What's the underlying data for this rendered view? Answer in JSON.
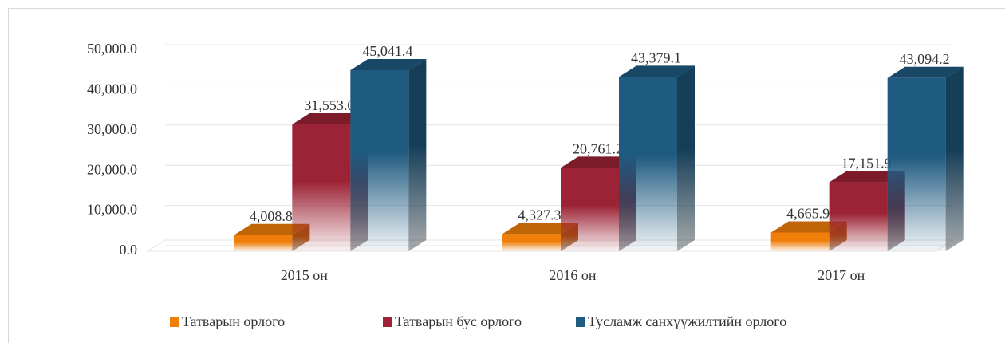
{
  "chart_data": {
    "type": "bar3d",
    "categories": [
      "2015 он",
      "2016 он",
      "2017 он"
    ],
    "series": [
      {
        "name": "Татварын орлого",
        "color": "#f07f09",
        "values": [
          4008.8,
          4327.3,
          4665.9
        ],
        "value_labels": [
          "4,008.8",
          "4,327.3",
          "4,665.9"
        ]
      },
      {
        "name": "Татварын бус орлого",
        "color": "#9b2335",
        "values": [
          31553.0,
          20761.2,
          17151.9
        ],
        "value_labels": [
          "31,553.0",
          "20,761.2",
          "17,151.9"
        ]
      },
      {
        "name": "Тусламж санхүүжилтийн орлого",
        "color": "#1f5a80",
        "values": [
          45041.4,
          43379.1,
          43094.2
        ],
        "value_labels": [
          "45,041.4",
          "43,379.1",
          "43,094.2"
        ]
      }
    ],
    "ylim": [
      0,
      50000
    ],
    "yticks": [
      {
        "value": 0,
        "label": "0.0"
      },
      {
        "value": 10000,
        "label": "10,000.0"
      },
      {
        "value": 20000,
        "label": "20,000.0"
      },
      {
        "value": 30000,
        "label": "30,000.0"
      },
      {
        "value": 40000,
        "label": "40,000.0"
      },
      {
        "value": 50000,
        "label": "50,000.0"
      }
    ],
    "grid": true,
    "legend": "bottom"
  }
}
